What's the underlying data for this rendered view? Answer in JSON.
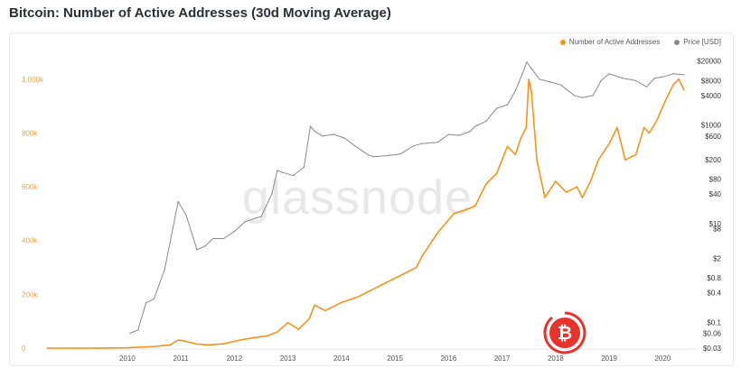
{
  "header": {
    "title": "Bitcoin: Number of Active Addresses (30d Moving Average)"
  },
  "watermark": "glassnode",
  "colors": {
    "addresses": "#f7931a",
    "price": "#8a8a8a",
    "logo": "#e8322c"
  },
  "legend": [
    {
      "label": "Number of Active Addresses",
      "color": "#f7931a"
    },
    {
      "label": "Price [USD]",
      "color": "#8a8a8a"
    }
  ],
  "chart_data": {
    "type": "line",
    "title": "Bitcoin: Number of Active Addresses (30d Moving Average)",
    "x_ticks": [
      "2010",
      "2011",
      "2012",
      "2013",
      "2014",
      "2015",
      "2016",
      "2017",
      "2018",
      "2019",
      "2020"
    ],
    "x_range": [
      2009.0,
      2020.95
    ],
    "y_left": {
      "ticks": [
        0,
        200000,
        400000,
        600000,
        800000,
        1000000
      ],
      "tick_labels": [
        "0",
        "200k",
        "400k",
        "600k",
        "800k",
        "1,000k"
      ],
      "range": [
        0,
        1100000
      ]
    },
    "y_right": {
      "scale": "log",
      "ticks": [
        0.03,
        0.06,
        0.1,
        0.4,
        0.8,
        2,
        8,
        10,
        40,
        80,
        200,
        600,
        1000,
        4000,
        8000,
        20000
      ],
      "tick_labels": [
        "$0.03",
        "$0.06",
        "$0.1",
        "$0.4",
        "$0.8",
        "$2",
        "$8",
        "$10",
        "$40",
        "$80",
        "$200",
        "$600",
        "$1000",
        "$4000",
        "$8000",
        "$20000"
      ],
      "range": [
        0.03,
        30000
      ]
    },
    "grid": false,
    "legend_position": "top-right",
    "series": [
      {
        "name": "Number of Active Addresses",
        "axis": "left",
        "x": [
          2009.0,
          2009.5,
          2010.0,
          2010.5,
          2011.0,
          2011.3,
          2011.45,
          2011.6,
          2011.8,
          2012.0,
          2012.3,
          2012.6,
          2012.9,
          2013.1,
          2013.3,
          2013.5,
          2013.7,
          2013.9,
          2014.0,
          2014.2,
          2014.5,
          2014.8,
          2015.0,
          2015.3,
          2015.6,
          2015.9,
          2016.0,
          2016.3,
          2016.6,
          2016.9,
          2017.0,
          2017.2,
          2017.4,
          2017.6,
          2017.75,
          2017.85,
          2017.95,
          2018.0,
          2018.05,
          2018.15,
          2018.3,
          2018.5,
          2018.7,
          2018.9,
          2019.0,
          2019.15,
          2019.3,
          2019.5,
          2019.65,
          2019.8,
          2020.0,
          2020.15,
          2020.25,
          2020.4,
          2020.55,
          2020.7,
          2020.8,
          2020.9
        ],
        "values": [
          0,
          0,
          500,
          1500,
          6000,
          12000,
          30000,
          25000,
          15000,
          12000,
          16000,
          30000,
          40000,
          45000,
          60000,
          95000,
          70000,
          110000,
          160000,
          140000,
          170000,
          190000,
          210000,
          240000,
          270000,
          300000,
          340000,
          430000,
          500000,
          520000,
          530000,
          610000,
          650000,
          750000,
          720000,
          780000,
          820000,
          1000000,
          950000,
          700000,
          560000,
          620000,
          580000,
          600000,
          560000,
          620000,
          700000,
          760000,
          820000,
          700000,
          720000,
          820000,
          800000,
          850000,
          920000,
          980000,
          1000000,
          960000
        ]
      },
      {
        "name": "Price [USD]",
        "axis": "right",
        "x": [
          2010.55,
          2010.7,
          2010.85,
          2011.0,
          2011.2,
          2011.35,
          2011.45,
          2011.6,
          2011.8,
          2011.95,
          2012.1,
          2012.3,
          2012.5,
          2012.7,
          2012.9,
          2013.0,
          2013.2,
          2013.3,
          2013.4,
          2013.6,
          2013.8,
          2013.92,
          2014.0,
          2014.15,
          2014.35,
          2014.55,
          2014.75,
          2015.0,
          2015.1,
          2015.35,
          2015.6,
          2015.85,
          2016.0,
          2016.3,
          2016.5,
          2016.7,
          2016.9,
          2017.0,
          2017.2,
          2017.4,
          2017.6,
          2017.75,
          2017.88,
          2017.96,
          2018.05,
          2018.2,
          2018.4,
          2018.6,
          2018.85,
          2019.0,
          2019.2,
          2019.35,
          2019.5,
          2019.75,
          2020.0,
          2020.2,
          2020.35,
          2020.5,
          2020.7,
          2020.9
        ],
        "values": [
          0.06,
          0.07,
          0.25,
          0.3,
          1.2,
          8,
          28,
          15,
          3,
          3.5,
          5,
          5,
          7,
          11,
          13,
          14,
          40,
          120,
          110,
          95,
          140,
          950,
          750,
          600,
          650,
          550,
          380,
          250,
          230,
          240,
          260,
          380,
          420,
          450,
          650,
          620,
          750,
          950,
          1200,
          2200,
          2600,
          5000,
          11000,
          19000,
          14000,
          8500,
          7500,
          6500,
          4000,
          3600,
          4000,
          8000,
          11000,
          9000,
          8000,
          6000,
          9000,
          9500,
          11000,
          10500
        ]
      }
    ]
  }
}
